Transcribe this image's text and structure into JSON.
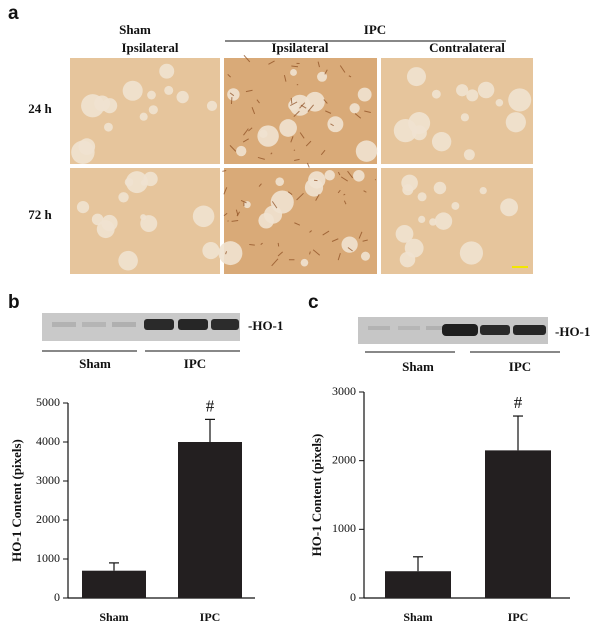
{
  "figure": {
    "panel_a": {
      "label": "a",
      "group_sham": "Sham",
      "group_ipc": "IPC",
      "columns": [
        "Ipsilateral",
        "Ipsilateral",
        "Contralateral"
      ],
      "rows": [
        "24 h",
        "72 h"
      ]
    },
    "panel_b": {
      "label": "b",
      "band_label": "-HO-1",
      "lanes": [
        "Sham",
        "IPC"
      ]
    },
    "panel_c": {
      "label": "c",
      "band_label": "-HO-1",
      "lanes": [
        "Sham",
        "IPC"
      ]
    }
  },
  "chart_data": [
    {
      "type": "bar",
      "y_label": "HO-1 Content (pixels)",
      "categories": [
        "Sham",
        "IPC"
      ],
      "values": [
        700,
        4000
      ],
      "errors": [
        200,
        580
      ],
      "color": "#231f20",
      "ylim": [
        0,
        5000
      ],
      "yticks": [
        0,
        1000,
        2000,
        3000,
        4000,
        5000
      ],
      "annotation": {
        "text": "#",
        "category": "IPC"
      }
    },
    {
      "type": "bar",
      "y_label": "HO-1 Content (pixels)",
      "categories": [
        "Sham",
        "IPC"
      ],
      "values": [
        390,
        2150
      ],
      "errors": [
        210,
        500
      ],
      "color": "#231f20",
      "ylim": [
        0,
        3000
      ],
      "yticks": [
        0,
        1000,
        2000,
        3000
      ],
      "annotation": {
        "text": "#",
        "category": "IPC"
      }
    }
  ]
}
